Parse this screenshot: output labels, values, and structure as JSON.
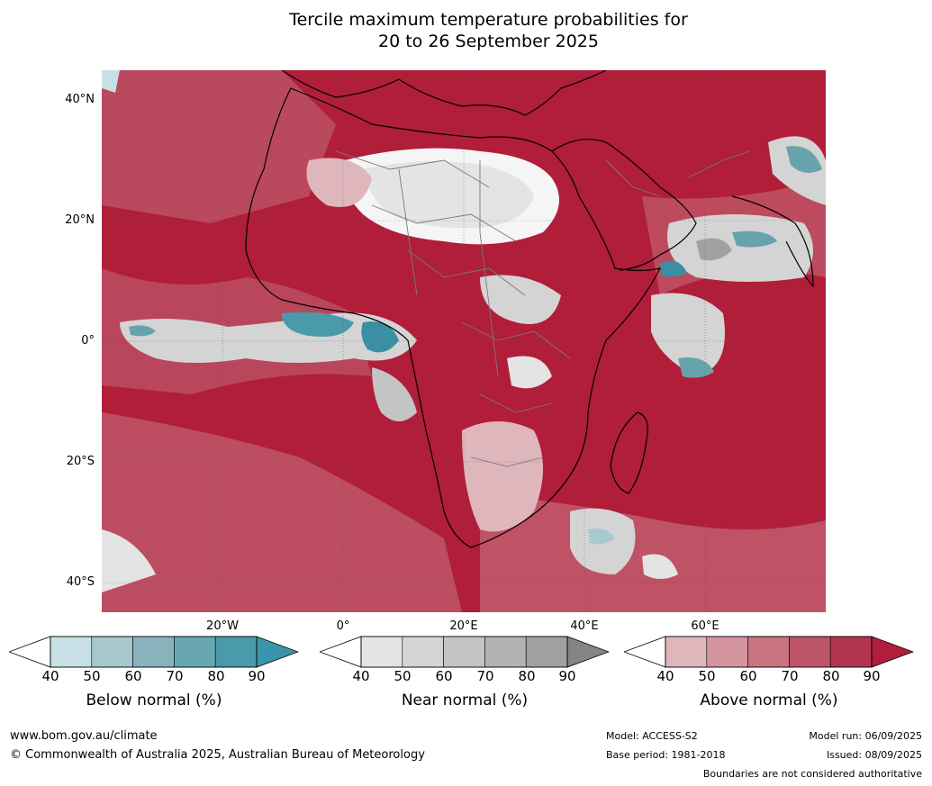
{
  "title": {
    "line1": "Tercile maximum temperature probabilities for",
    "line2": "20 to 26 September 2025"
  },
  "map": {
    "latitude_labels": [
      "40°N",
      "20°N",
      "0°",
      "20°S",
      "40°S"
    ],
    "longitude_labels": [
      "20°W",
      "0°",
      "20°E",
      "40°E",
      "60°E"
    ],
    "colors": {
      "above": [
        "#e0b6bd",
        "#d4959f",
        "#c97580",
        "#bd5468",
        "#b3344e",
        "#b01e3a"
      ],
      "near": [
        "#e4e4e4",
        "#d4d4d4",
        "#c4c4c4",
        "#b3b3b3",
        "#a1a1a1",
        "#848484"
      ],
      "below": [
        "#c8e0e5",
        "#a8c9cf",
        "#88b3bd",
        "#68a3ad",
        "#4a9aab",
        "#3a8fa3"
      ],
      "land_outline": "#000000",
      "borders": "#7a7a7a"
    }
  },
  "colorbars": [
    {
      "name": "below",
      "ticks": [
        "40",
        "50",
        "60",
        "70",
        "80",
        "90"
      ],
      "label": "Below normal (%)",
      "colors": [
        "#c8e0e5",
        "#a6c7cd",
        "#88b3bd",
        "#68a7b2",
        "#4a9aab",
        "#3a95aa"
      ]
    },
    {
      "name": "near",
      "ticks": [
        "40",
        "50",
        "60",
        "70",
        "80",
        "90"
      ],
      "label": "Near normal (%)",
      "colors": [
        "#e4e4e4",
        "#d4d4d4",
        "#c4c4c4",
        "#b3b3b3",
        "#a1a1a1",
        "#848484"
      ]
    },
    {
      "name": "above",
      "ticks": [
        "40",
        "50",
        "60",
        "70",
        "80",
        "90"
      ],
      "label": "Above normal (%)",
      "colors": [
        "#e0b6bd",
        "#d4959f",
        "#c97580",
        "#bd5468",
        "#b3344e",
        "#b01e3a"
      ]
    }
  ],
  "footer": {
    "website": "www.bom.gov.au/climate",
    "copyright": "© Commonwealth of Australia 2025, Australian Bureau of Meteorology",
    "model": "Model: ACCESS-S2",
    "base_period": "Base period: 1981-2018",
    "model_run": "Model run: 06/09/2025",
    "issued": "Issued: 08/09/2025",
    "disclaimer": "Boundaries are not considered authoritative"
  }
}
